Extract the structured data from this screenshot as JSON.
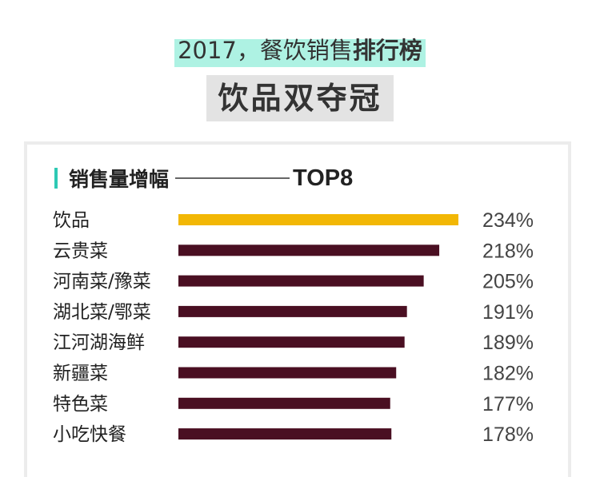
{
  "header": {
    "subtitle_prefix": "2017，餐饮销售",
    "subtitle_bold": "排行榜",
    "title": "饮品双夺冠"
  },
  "section": {
    "label": "销售量增幅",
    "top_label": "TOP8"
  },
  "colors": {
    "highlight": "#f2b705",
    "bar": "#4a0f22",
    "text": "#222222",
    "accent": "#2ec9b4"
  },
  "chart_data": {
    "type": "bar",
    "orientation": "horizontal",
    "title": "销售量增幅",
    "categories": [
      "饮品",
      "云贵菜",
      "河南菜/豫菜",
      "湖北菜/鄂菜",
      "江河湖海鲜",
      "新疆菜",
      "特色菜",
      "小吃快餐"
    ],
    "values": [
      234,
      218,
      205,
      191,
      189,
      182,
      177,
      178
    ],
    "value_labels": [
      "234%",
      "218%",
      "205%",
      "191%",
      "189%",
      "182%",
      "177%",
      "178%"
    ],
    "unit": "%",
    "highlight_index": 0,
    "xlim": [
      0,
      234
    ],
    "grid": false,
    "legend": "none"
  }
}
